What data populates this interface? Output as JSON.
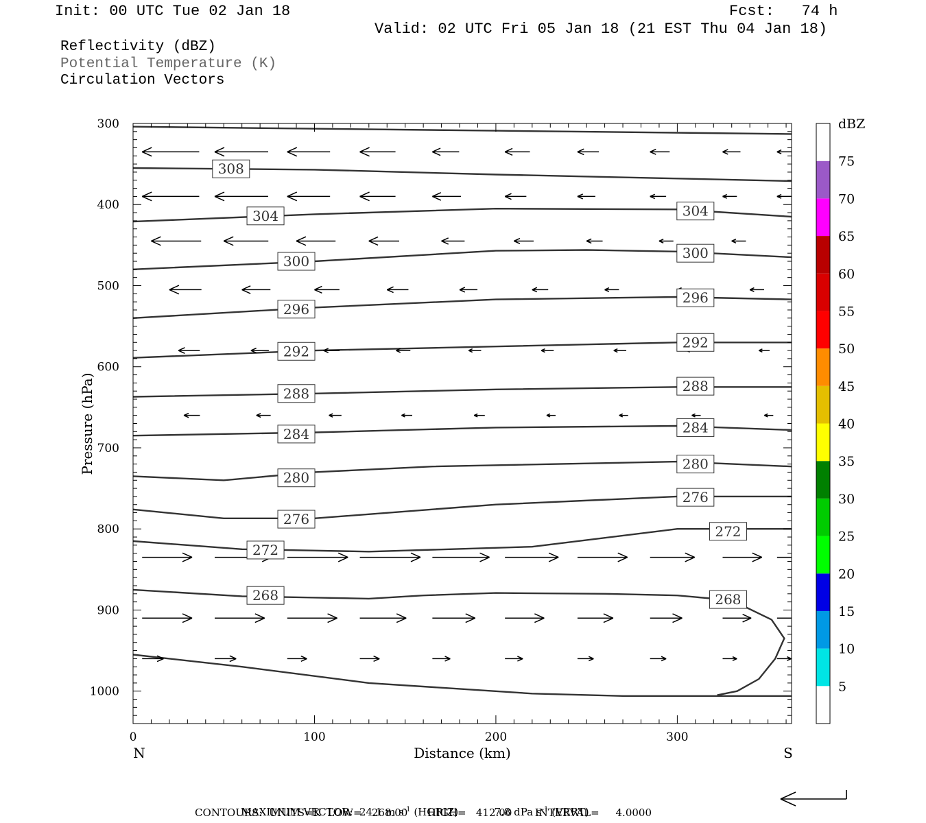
{
  "header": {
    "init": "Init: 00 UTC Tue 02 Jan 18",
    "fcst": "Fcst:   74 h",
    "valid": "Valid: 02 UTC Fri 05 Jan 18 (21 EST Thu 04 Jan 18)"
  },
  "legend": {
    "line1": "Reflectivity (dBZ)",
    "line2": "Potential Temperature (K)",
    "line3": "Circulation Vectors"
  },
  "footer": {
    "max_vector_label": "MAXIMUM VECTOR:",
    "max_vector_horiz": "24.1 m s",
    "horiz_tag": "(HORIZ)",
    "max_vector_vert": "7.8 dPa s",
    "vert_tag": "(VERT)",
    "exp": "-1",
    "contours": "CONTOURS:  UNITS=K  LOW=   268.00      HIGH=   412.00       INTERVAL=     4.0000"
  },
  "colors": {
    "contour": "#333333",
    "colorbar": [
      "#ffffff",
      "#00e5e5",
      "#0099e5",
      "#0000e5",
      "#00ff00",
      "#00cc00",
      "#008000",
      "#ffff00",
      "#e5bf00",
      "#ff8c00",
      "#ff0000",
      "#d90000",
      "#b80000",
      "#ff00ff",
      "#9b59c8",
      "#ffffff"
    ]
  },
  "chart_data": {
    "type": "cross-section",
    "xlabel": "Distance (km)",
    "ylabel": "Pressure (hPa)",
    "xlim": [
      0,
      363
    ],
    "ylim": [
      1040,
      300
    ],
    "x_ticks": [
      0,
      100,
      200,
      300
    ],
    "y_ticks": [
      300,
      400,
      500,
      600,
      700,
      800,
      900,
      1000
    ],
    "x_end_labels": {
      "left": "N",
      "right": "S"
    },
    "colorbar": {
      "unit": "dBZ",
      "levels": [
        5,
        10,
        15,
        20,
        25,
        30,
        35,
        40,
        45,
        50,
        55,
        60,
        65,
        70,
        75
      ]
    },
    "theta_contours": [
      {
        "value": 308,
        "points": [
          [
            0,
            304
          ],
          [
            200,
            309
          ],
          [
            363,
            313
          ]
        ]
      },
      {
        "value": 308,
        "points": [
          [
            0,
            355
          ],
          [
            100,
            357
          ],
          [
            200,
            363
          ],
          [
            363,
            371
          ]
        ],
        "labels": [
          [
            54,
            356
          ]
        ]
      },
      {
        "value": 304,
        "points": [
          [
            0,
            421
          ],
          [
            100,
            412
          ],
          [
            200,
            405
          ],
          [
            300,
            406
          ],
          [
            363,
            415
          ]
        ],
        "labels": [
          [
            73,
            414
          ],
          [
            310,
            408
          ]
        ]
      },
      {
        "value": 300,
        "points": [
          [
            0,
            480
          ],
          [
            100,
            470
          ],
          [
            200,
            457
          ],
          [
            250,
            456
          ],
          [
            300,
            458
          ],
          [
            363,
            465
          ]
        ],
        "labels": [
          [
            90,
            470
          ],
          [
            310,
            460
          ]
        ]
      },
      {
        "value": 296,
        "points": [
          [
            0,
            540
          ],
          [
            100,
            527
          ],
          [
            200,
            517
          ],
          [
            300,
            514
          ],
          [
            363,
            517
          ]
        ],
        "labels": [
          [
            90,
            529
          ],
          [
            310,
            515
          ]
        ]
      },
      {
        "value": 292,
        "points": [
          [
            0,
            589
          ],
          [
            100,
            580
          ],
          [
            200,
            575
          ],
          [
            300,
            570
          ],
          [
            363,
            570
          ]
        ],
        "labels": [
          [
            90,
            581
          ],
          [
            310,
            570
          ]
        ]
      },
      {
        "value": 288,
        "points": [
          [
            0,
            637
          ],
          [
            100,
            633
          ],
          [
            200,
            628
          ],
          [
            300,
            625
          ],
          [
            363,
            625
          ]
        ],
        "labels": [
          [
            90,
            633
          ],
          [
            310,
            624
          ]
        ]
      },
      {
        "value": 284,
        "points": [
          [
            0,
            685
          ],
          [
            100,
            681
          ],
          [
            200,
            675
          ],
          [
            300,
            673
          ],
          [
            363,
            678
          ]
        ],
        "labels": [
          [
            90,
            683
          ],
          [
            310,
            675
          ]
        ]
      },
      {
        "value": 280,
        "points": [
          [
            0,
            735
          ],
          [
            50,
            740
          ],
          [
            100,
            730
          ],
          [
            165,
            723
          ],
          [
            300,
            717
          ],
          [
            363,
            723
          ]
        ],
        "labels": [
          [
            90,
            737
          ],
          [
            310,
            720
          ]
        ]
      },
      {
        "value": 276,
        "points": [
          [
            0,
            776
          ],
          [
            50,
            787
          ],
          [
            100,
            787
          ],
          [
            200,
            770
          ],
          [
            300,
            760
          ],
          [
            363,
            760
          ]
        ],
        "labels": [
          [
            90,
            788
          ],
          [
            310,
            761
          ]
        ]
      },
      {
        "value": 272,
        "points": [
          [
            0,
            815
          ],
          [
            60,
            825
          ],
          [
            130,
            828
          ],
          [
            220,
            822
          ],
          [
            300,
            800
          ],
          [
            363,
            800
          ]
        ],
        "labels": [
          [
            73,
            826
          ],
          [
            328,
            803
          ]
        ]
      },
      {
        "value": 268,
        "points": [
          [
            0,
            875
          ],
          [
            60,
            883
          ],
          [
            130,
            886
          ],
          [
            160,
            882
          ],
          [
            200,
            879
          ],
          [
            260,
            880
          ],
          [
            300,
            882
          ],
          [
            330,
            888
          ],
          [
            352,
            912
          ],
          [
            359,
            935
          ],
          [
            354,
            960
          ],
          [
            345,
            985
          ],
          [
            333,
            1000
          ],
          [
            322,
            1005
          ]
        ],
        "labels": [
          [
            73,
            882
          ],
          [
            328,
            887
          ]
        ]
      },
      {
        "value": 272,
        "points": [
          [
            0,
            955
          ],
          [
            60,
            970
          ],
          [
            130,
            990
          ],
          [
            220,
            1003
          ],
          [
            270,
            1006
          ],
          [
            363,
            1006
          ]
        ]
      }
    ],
    "vectors_rows": [
      {
        "p": 335,
        "x": [
          5,
          45,
          85,
          125,
          165,
          205,
          245,
          285,
          325,
          355
        ],
        "dir": "left",
        "len": [
          32,
          30,
          24,
          20,
          15,
          14,
          12,
          11,
          10,
          8
        ]
      },
      {
        "p": 390,
        "x": [
          5,
          45,
          85,
          125,
          165,
          205,
          245,
          285,
          325,
          355
        ],
        "dir": "left",
        "len": [
          32,
          30,
          24,
          20,
          16,
          12,
          10,
          9,
          8,
          8
        ]
      },
      {
        "p": 445,
        "x": [
          10,
          50,
          90,
          130,
          170,
          210,
          250,
          290,
          330
        ],
        "dir": "left",
        "len": [
          28,
          25,
          22,
          17,
          13,
          11,
          9,
          8,
          8
        ]
      },
      {
        "p": 505,
        "x": [
          20,
          60,
          100,
          140,
          180,
          220,
          260,
          300,
          340
        ],
        "dir": "left",
        "len": [
          18,
          16,
          14,
          12,
          10,
          9,
          8,
          8,
          8
        ]
      },
      {
        "p": 580,
        "x": [
          25,
          65,
          105,
          145,
          185,
          225,
          265,
          305,
          345
        ],
        "dir": "left",
        "len": [
          12,
          10,
          9,
          8,
          7,
          7,
          7,
          6,
          6
        ]
      },
      {
        "p": 660,
        "x": [
          28,
          68,
          108,
          148,
          188,
          228,
          268,
          308,
          348
        ],
        "dir": "left",
        "len": [
          9,
          8,
          7,
          6,
          6,
          5,
          5,
          5,
          5
        ]
      },
      {
        "p": 835,
        "x": [
          5,
          45,
          85,
          125,
          165,
          205,
          245,
          285,
          325,
          355
        ],
        "dir": "right",
        "len": [
          28,
          32,
          34,
          34,
          32,
          30,
          28,
          25,
          22,
          15
        ]
      },
      {
        "p": 910,
        "x": [
          5,
          45,
          85,
          125,
          165,
          205,
          245,
          285,
          325,
          355
        ],
        "dir": "right",
        "len": [
          28,
          28,
          28,
          26,
          24,
          22,
          20,
          18,
          16,
          14
        ]
      },
      {
        "p": 960,
        "x": [
          5,
          45,
          85,
          125,
          165,
          205,
          245,
          285,
          325,
          355
        ],
        "dir": "right",
        "len": [
          12,
          12,
          11,
          11,
          10,
          10,
          9,
          9,
          8,
          8
        ]
      }
    ]
  }
}
